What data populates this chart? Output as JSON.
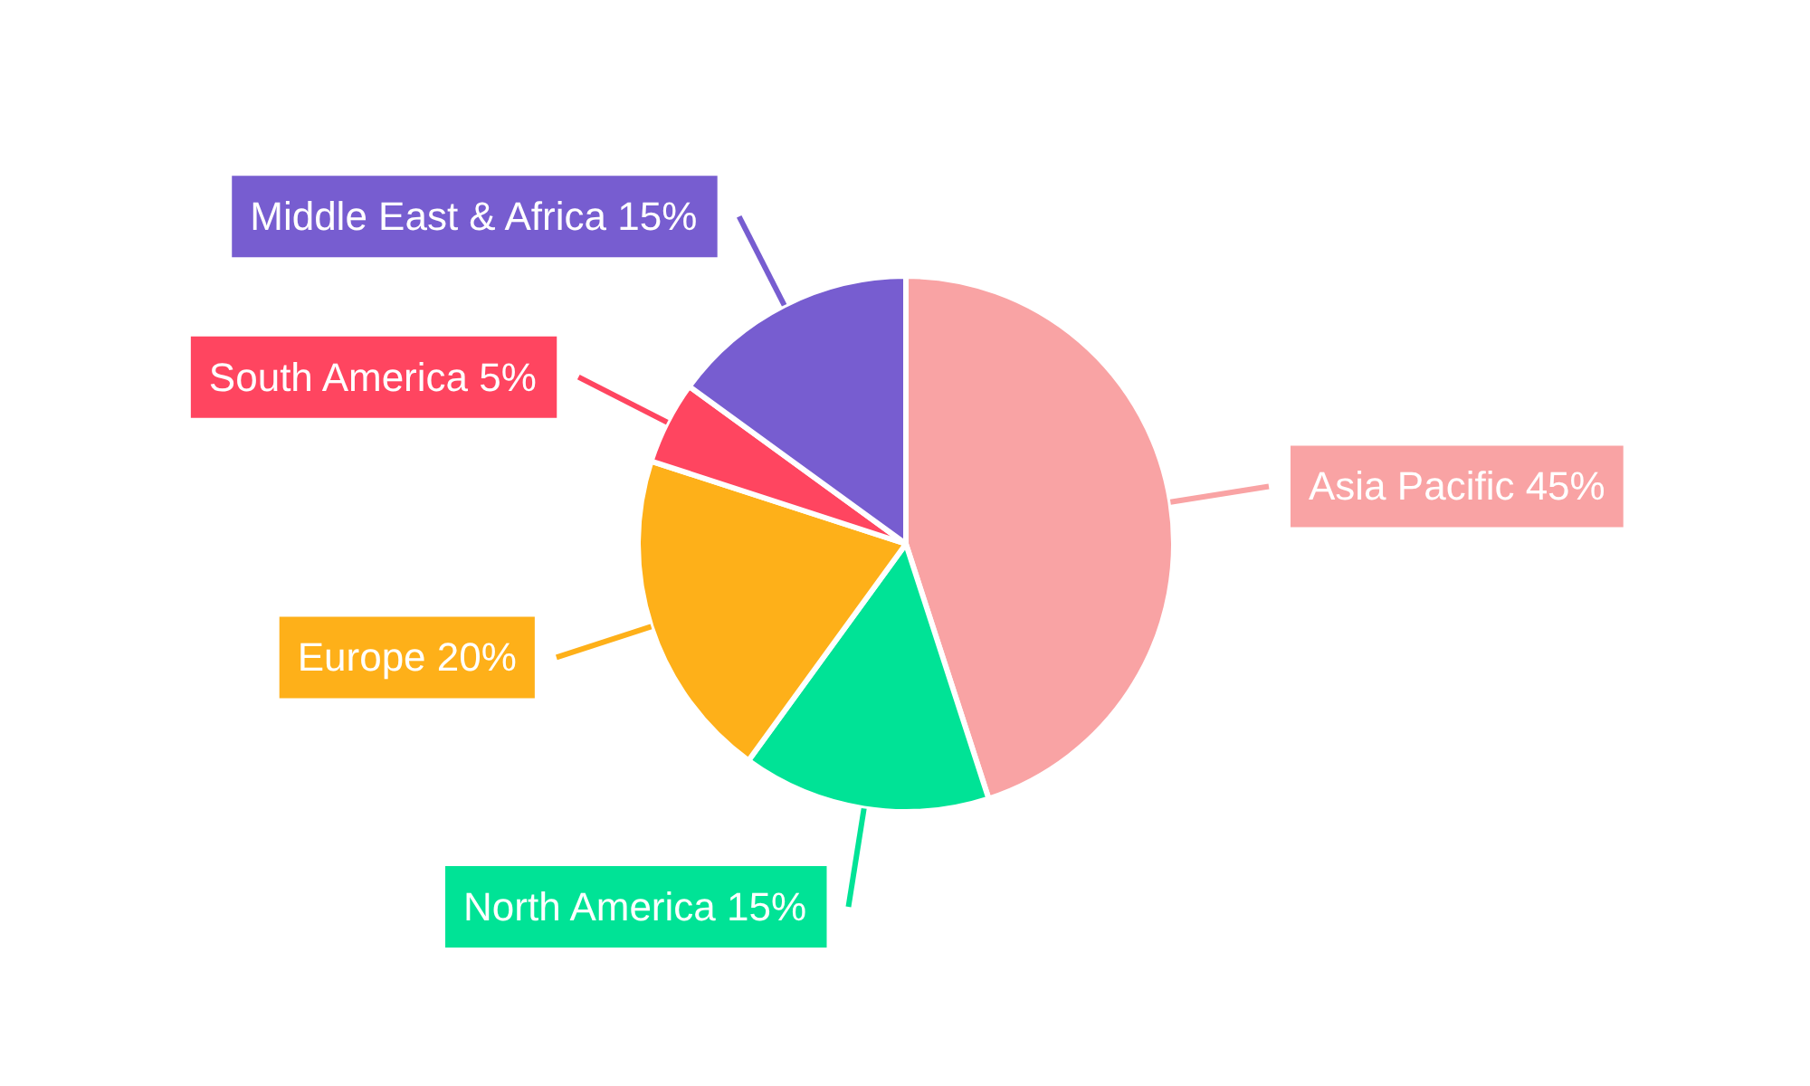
{
  "chart_data": {
    "type": "pie",
    "categories": [
      "Asia Pacific",
      "North America",
      "Europe",
      "South America",
      "Middle East & Africa"
    ],
    "values": [
      45,
      15,
      20,
      5,
      15
    ],
    "value_labels": [
      "45%",
      "15%",
      "20%",
      "5%",
      "15%"
    ],
    "colors": [
      "#f9a3a4",
      "#00e396",
      "#feb019",
      "#ff4560",
      "#775dd0"
    ],
    "data_labels": true
  }
}
